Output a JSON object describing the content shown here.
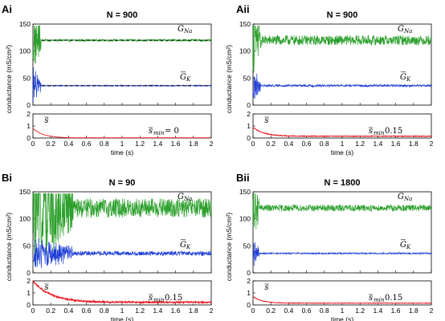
{
  "colors": {
    "na": "#2ca02c",
    "k": "#1f3fd6",
    "s": "#e8141c",
    "axes": "#000000",
    "ref": "#000000"
  },
  "common": {
    "ylabel_main": "conductance (mS/cm²)",
    "xlabel": "time (s)",
    "main_yticks": [
      0,
      50,
      100,
      150
    ],
    "inset_yticks": [
      0,
      1,
      2
    ],
    "xticks": [
      "0",
      "0.2",
      "0.4",
      "0.6",
      "0.8",
      "1",
      "1.2",
      "1.4",
      "1.6",
      "1.8",
      "2"
    ],
    "label_na": "G",
    "label_na_sub": "Na",
    "label_k": "G",
    "label_k_sub": "K",
    "label_s": "s",
    "smin_sub": "min"
  },
  "chart_data": [
    {
      "type": "line",
      "panel": "Ai",
      "title": "N = 900",
      "xlim": [
        0,
        2
      ],
      "ylim": [
        0,
        150
      ],
      "inset_ylim": [
        0,
        2
      ],
      "smin_value": "= 0",
      "series": [
        {
          "name": "G_Na",
          "mean": 120,
          "noise": 2,
          "transient_end": 0.09,
          "transient_amp": 60
        },
        {
          "name": "G_K",
          "mean": 36,
          "noise": 1,
          "transient_end": 0.09,
          "transient_amp": 35
        },
        {
          "name": "s",
          "start": 0.8,
          "end": 0.0,
          "tau": 0.12,
          "noise": 0.0
        }
      ],
      "reference_lines": [
        120,
        36
      ]
    },
    {
      "type": "line",
      "panel": "Aii",
      "title": "N = 900",
      "xlim": [
        0,
        2
      ],
      "ylim": [
        0,
        150
      ],
      "inset_ylim": [
        0,
        2
      ],
      "smin_value": "0.15",
      "series": [
        {
          "name": "G_Na",
          "mean": 120,
          "noise": 9,
          "transient_end": 0.09,
          "transient_amp": 60
        },
        {
          "name": "G_K",
          "mean": 36,
          "noise": 2,
          "transient_end": 0.09,
          "transient_amp": 30
        },
        {
          "name": "s",
          "start": 0.9,
          "end": 0.15,
          "tau": 0.12,
          "noise": 0.03
        }
      ],
      "reference_lines": []
    },
    {
      "type": "line",
      "panel": "Bi",
      "title": "N = 90",
      "xlim": [
        0,
        2
      ],
      "ylim": [
        0,
        150
      ],
      "inset_ylim": [
        0,
        2
      ],
      "smin_value": "0.15",
      "series": [
        {
          "name": "G_Na",
          "mean": 120,
          "noise": 18,
          "transient_end": 0.45,
          "transient_amp": 110
        },
        {
          "name": "G_K",
          "mean": 36,
          "noise": 4,
          "transient_end": 0.45,
          "transient_amp": 30
        },
        {
          "name": "s",
          "start": 2.0,
          "end": 0.22,
          "tau": 0.2,
          "noise": 0.07
        }
      ],
      "reference_lines": []
    },
    {
      "type": "line",
      "panel": "Bii",
      "title": "N = 1800",
      "xlim": [
        0,
        2
      ],
      "ylim": [
        0,
        150
      ],
      "inset_ylim": [
        0,
        2
      ],
      "smin_value": "0.15",
      "series": [
        {
          "name": "G_Na",
          "mean": 120,
          "noise": 6,
          "transient_end": 0.07,
          "transient_amp": 50
        },
        {
          "name": "G_K",
          "mean": 36,
          "noise": 1.5,
          "transient_end": 0.07,
          "transient_amp": 30
        },
        {
          "name": "s",
          "start": 0.7,
          "end": 0.15,
          "tau": 0.1,
          "noise": 0.02
        }
      ],
      "reference_lines": []
    }
  ]
}
